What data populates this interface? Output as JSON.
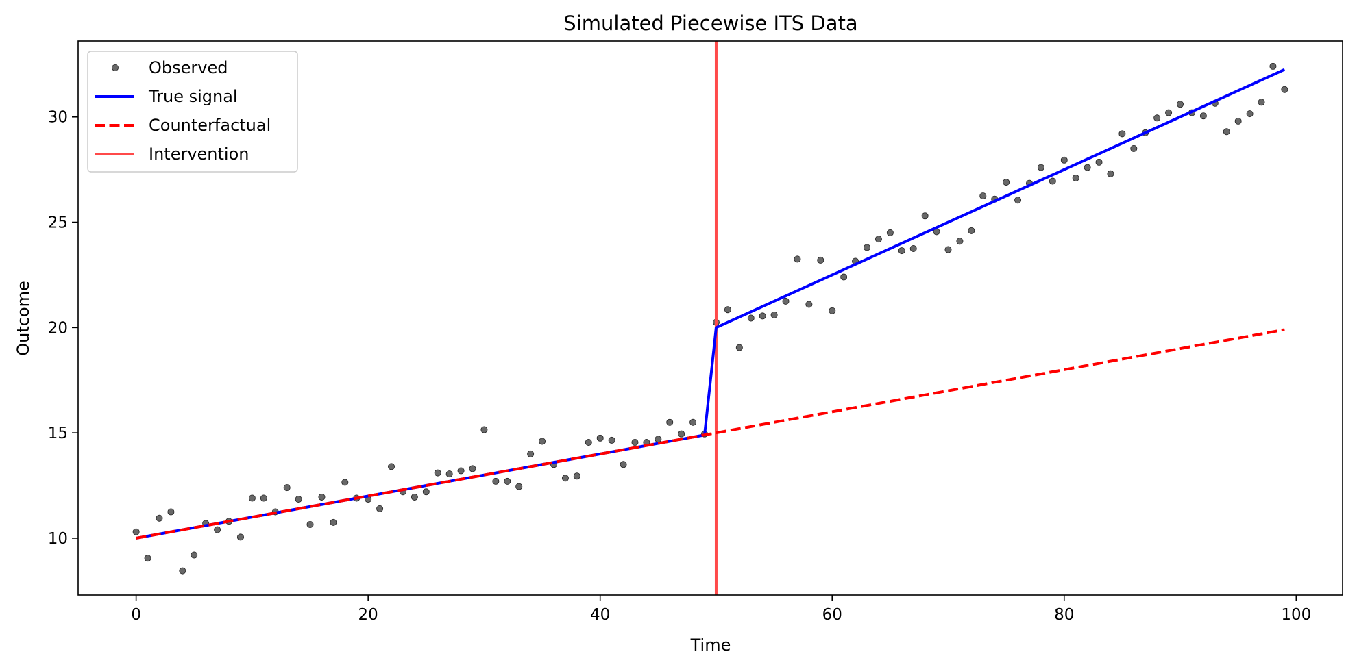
{
  "chart_data": {
    "type": "scatter",
    "title": "Simulated Piecewise ITS Data",
    "xlabel": "Time",
    "ylabel": "Outcome",
    "xlim": [
      -5,
      104
    ],
    "ylim": [
      7.3,
      33.6
    ],
    "xticks": [
      0,
      20,
      40,
      60,
      80,
      100
    ],
    "yticks": [
      10,
      15,
      20,
      25,
      30
    ],
    "grid": false,
    "legend_position": "upper left",
    "intervention_x": 50,
    "series": [
      {
        "name": "Observed",
        "kind": "points",
        "color": "#4d4d4d",
        "x": [
          0,
          1,
          2,
          3,
          4,
          5,
          6,
          7,
          8,
          9,
          10,
          11,
          12,
          13,
          14,
          15,
          16,
          17,
          18,
          19,
          20,
          21,
          22,
          23,
          24,
          25,
          26,
          27,
          28,
          29,
          30,
          31,
          32,
          33,
          34,
          35,
          36,
          37,
          38,
          39,
          40,
          41,
          42,
          43,
          44,
          45,
          46,
          47,
          48,
          49,
          50,
          51,
          52,
          53,
          54,
          55,
          56,
          57,
          58,
          59,
          60,
          61,
          62,
          63,
          64,
          65,
          66,
          67,
          68,
          69,
          70,
          71,
          72,
          73,
          74,
          75,
          76,
          77,
          78,
          79,
          80,
          81,
          82,
          83,
          84,
          85,
          86,
          87,
          88,
          89,
          90,
          91,
          92,
          93,
          94,
          95,
          96,
          97,
          98,
          99
        ],
        "y": [
          10.3,
          9.05,
          10.95,
          11.25,
          8.45,
          9.2,
          10.7,
          10.4,
          10.8,
          10.05,
          11.9,
          11.9,
          11.25,
          12.4,
          11.85,
          10.65,
          11.95,
          10.75,
          12.65,
          11.9,
          11.85,
          11.4,
          13.4,
          12.2,
          11.95,
          12.2,
          13.1,
          13.05,
          13.2,
          13.3,
          15.15,
          12.7,
          12.7,
          12.45,
          14.0,
          14.6,
          13.5,
          12.85,
          12.95,
          14.55,
          14.75,
          14.65,
          13.5,
          14.55,
          14.55,
          14.7,
          15.5,
          14.95,
          15.5,
          14.95,
          20.25,
          20.85,
          19.05,
          20.45,
          20.55,
          20.6,
          21.25,
          23.25,
          21.1,
          23.2,
          20.8,
          22.4,
          23.15,
          23.8,
          24.2,
          24.5,
          23.65,
          23.75,
          25.3,
          24.55,
          23.7,
          24.1,
          24.6,
          26.25,
          26.1,
          26.9,
          26.05,
          26.85,
          27.6,
          26.95,
          27.95,
          27.1,
          27.6,
          27.85,
          27.3,
          29.2,
          28.5,
          29.25,
          29.95,
          30.2,
          30.6,
          30.2,
          30.05,
          30.65,
          29.3,
          29.8,
          30.15,
          30.7,
          32.4,
          31.3
        ]
      },
      {
        "name": "True signal",
        "kind": "line",
        "color": "#0000ff",
        "style": "solid",
        "x": [
          0,
          49,
          50,
          99
        ],
        "y": [
          10,
          14.9,
          20,
          32.25
        ]
      },
      {
        "name": "Counterfactual",
        "kind": "line",
        "color": "#ff0000",
        "style": "dashed",
        "x": [
          0,
          99
        ],
        "y": [
          10,
          19.9
        ]
      },
      {
        "name": "Intervention",
        "kind": "vline",
        "color": "#ff4a4a",
        "style": "solid",
        "x": 50
      }
    ]
  }
}
